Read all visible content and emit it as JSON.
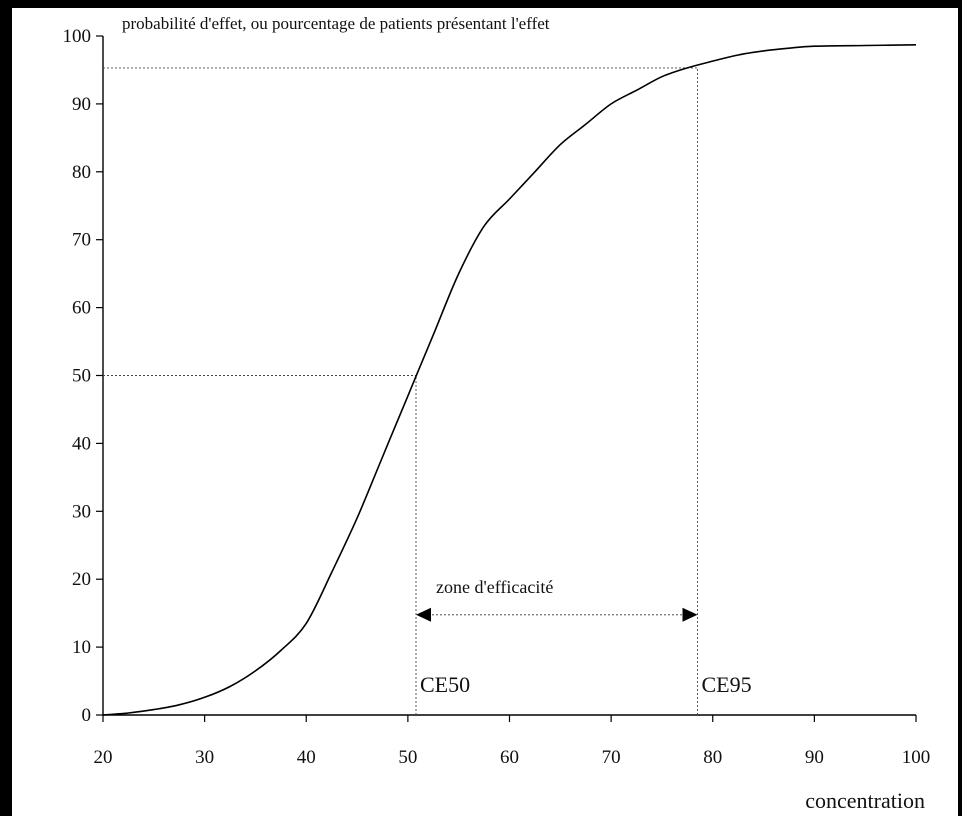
{
  "chart_data": {
    "type": "line",
    "title": "probabilité d'effet, ou pourcentage de patients présentant l'effet",
    "xlabel": "concentration",
    "ylabel": "",
    "xlim": [
      20,
      100
    ],
    "ylim": [
      0,
      100
    ],
    "x_ticks": [
      "20",
      "30",
      "40",
      "50",
      "60",
      "70",
      "80",
      "90",
      "100"
    ],
    "y_ticks": [
      "0",
      "10",
      "20",
      "30",
      "40",
      "50",
      "60",
      "70",
      "80",
      "90",
      "100"
    ],
    "grid": false,
    "series": [
      {
        "name": "",
        "color": "#000000",
        "x": [
          20,
          22.5,
          25,
          27.5,
          30,
          32.5,
          35,
          37.5,
          40,
          42.5,
          45,
          47.5,
          50,
          52.5,
          55,
          57.5,
          60,
          62.5,
          65,
          67.5,
          70,
          72.5,
          75,
          77.5,
          80,
          82.5,
          85,
          87.5,
          90,
          95,
          100
        ],
        "y": [
          0,
          0.3,
          0.8,
          1.5,
          2.6,
          4.2,
          6.5,
          9.5,
          13.5,
          21,
          29,
          38,
          47,
          56,
          65,
          72,
          76,
          80,
          84,
          87,
          90,
          92,
          94,
          95.3,
          96.3,
          97.2,
          97.8,
          98.2,
          98.5,
          98.6,
          98.7
        ]
      }
    ],
    "reference_lines": [
      {
        "type": "horizontal",
        "y": 95.3,
        "x_end": 78.5,
        "style": "dotted"
      },
      {
        "type": "vertical",
        "x": 78.5,
        "y_end": 95.3,
        "style": "dotted"
      },
      {
        "type": "horizontal",
        "y": 50,
        "x_end": 50.8,
        "style": "dotted"
      },
      {
        "type": "vertical",
        "x": 50.8,
        "y_end": 50,
        "style": "dotted"
      }
    ],
    "annotations": [
      {
        "text": "CE50",
        "x": 50.8
      },
      {
        "text": "CE95",
        "x": 78.5
      },
      {
        "text": "zone d'efficacité",
        "x_start": 50.8,
        "x_end": 78.5,
        "y": 18
      }
    ]
  }
}
